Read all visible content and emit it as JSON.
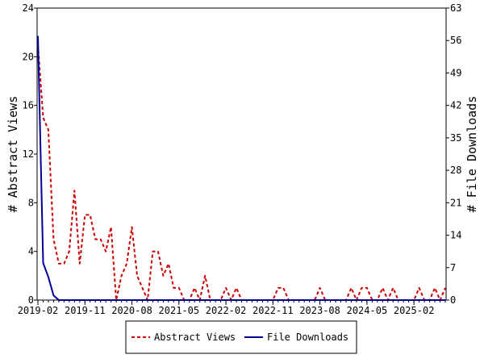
{
  "chart_data": {
    "type": "line",
    "title": "",
    "xlabel": "",
    "ylabel_left": "# Abstract Views",
    "ylabel_right": "# File Downloads",
    "x_ticks": [
      "2019-02",
      "2019-11",
      "2020-08",
      "2021-05",
      "2022-02",
      "2022-11",
      "2023-08",
      "2024-05",
      "2025-02"
    ],
    "ylim_left": [
      0,
      24
    ],
    "yticks_left": [
      0,
      4,
      8,
      12,
      16,
      20,
      24
    ],
    "ylim_right": [
      0,
      63
    ],
    "yticks_right": [
      0,
      7,
      14,
      21,
      28,
      35,
      42,
      49,
      56,
      63
    ],
    "x_months": [
      "2019-02",
      "2019-03",
      "2019-04",
      "2019-05",
      "2019-06",
      "2019-07",
      "2019-08",
      "2019-09",
      "2019-10",
      "2019-11",
      "2019-12",
      "2020-01",
      "2020-02",
      "2020-03",
      "2020-04",
      "2020-05",
      "2020-06",
      "2020-07",
      "2020-08",
      "2020-09",
      "2020-10",
      "2020-11",
      "2020-12",
      "2021-01",
      "2021-02",
      "2021-03",
      "2021-04",
      "2021-05",
      "2021-06",
      "2021-07",
      "2021-08",
      "2021-09",
      "2021-10",
      "2021-11",
      "2021-12",
      "2022-01",
      "2022-02",
      "2022-03",
      "2022-04",
      "2022-05",
      "2022-06",
      "2022-07",
      "2022-08",
      "2022-09",
      "2022-10",
      "2022-11",
      "2022-12",
      "2023-01",
      "2023-02",
      "2023-03",
      "2023-04",
      "2023-05",
      "2023-06",
      "2023-07",
      "2023-08",
      "2023-09",
      "2023-10",
      "2023-11",
      "2023-12",
      "2024-01",
      "2024-02",
      "2024-03",
      "2024-04",
      "2024-05",
      "2024-06",
      "2024-07",
      "2024-08",
      "2024-09",
      "2024-10",
      "2024-11",
      "2024-12",
      "2025-01",
      "2025-02",
      "2025-03",
      "2025-04",
      "2025-05",
      "2025-06",
      "2025-07",
      "2025-08"
    ],
    "series": [
      {
        "name": "Abstract Views",
        "axis": "left",
        "color": "#cc0000",
        "dash": true,
        "values": [
          21,
          15,
          14,
          5,
          3,
          3,
          4,
          9,
          3,
          7,
          7,
          5,
          5,
          4,
          6,
          0,
          2,
          3,
          6,
          2,
          1,
          0,
          4,
          4,
          2,
          3,
          1,
          1,
          0,
          0,
          1,
          0,
          2,
          0,
          0,
          0,
          1,
          0,
          1,
          0,
          0,
          0,
          0,
          0,
          0,
          0,
          1,
          1,
          0,
          0,
          0,
          0,
          0,
          0,
          1,
          0,
          0,
          0,
          0,
          0,
          1,
          0,
          1,
          1,
          0,
          0,
          1,
          0,
          1,
          0,
          0,
          0,
          0,
          1,
          0,
          0,
          1,
          0,
          1
        ]
      },
      {
        "name": "File Downloads",
        "axis": "right",
        "color": "#000099",
        "dash": false,
        "values": [
          57,
          8,
          5,
          1,
          0,
          0,
          0,
          0,
          0,
          0,
          0,
          0,
          0,
          0,
          0,
          0,
          0,
          0,
          0,
          0,
          0,
          0,
          0,
          0,
          0,
          0,
          0,
          0,
          0,
          0,
          0,
          0,
          0,
          0,
          0,
          0,
          0,
          0,
          0,
          0,
          0,
          0,
          0,
          0,
          0,
          0,
          0,
          0,
          0,
          0,
          0,
          0,
          0,
          0,
          0,
          0,
          0,
          0,
          0,
          0,
          0,
          0,
          0,
          0,
          0,
          0,
          0,
          0,
          0,
          0,
          0,
          0,
          0,
          0,
          0,
          0,
          0,
          0,
          0
        ]
      }
    ],
    "legend_position": "bottom"
  }
}
